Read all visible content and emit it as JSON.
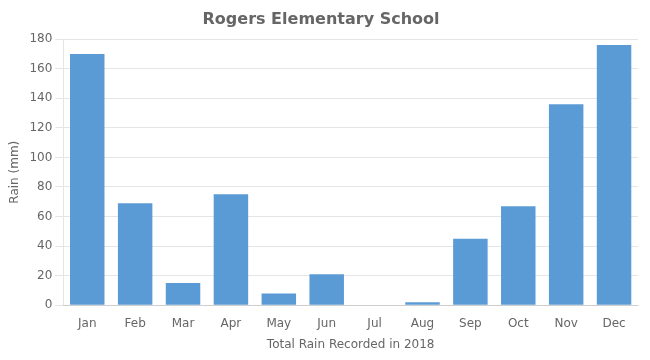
{
  "chart_data": {
    "type": "bar",
    "title": "Rogers Elementary School",
    "xlabel": "Total Rain Recorded in 2018",
    "ylabel": "Rain (mm)",
    "categories": [
      "Jan",
      "Feb",
      "Mar",
      "Apr",
      "May",
      "Jun",
      "Jul",
      "Aug",
      "Sep",
      "Oct",
      "Nov",
      "Dec"
    ],
    "values": [
      170,
      69,
      15,
      75,
      8,
      21,
      0,
      2,
      45,
      67,
      136,
      176
    ],
    "color": "#5B9BD5",
    "ylim": [
      0,
      180
    ],
    "yticks": [
      0,
      20,
      40,
      60,
      80,
      100,
      120,
      140,
      160,
      180
    ],
    "grid": true
  }
}
